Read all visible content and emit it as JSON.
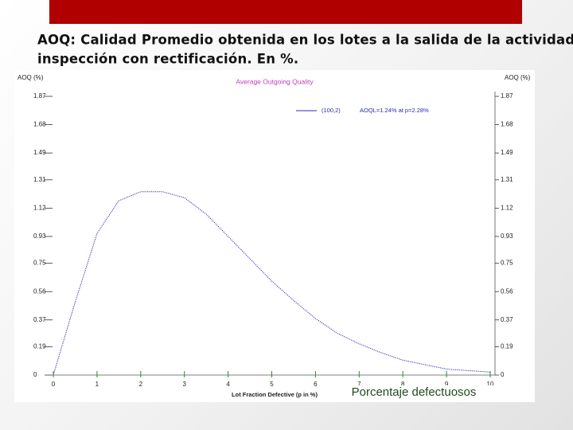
{
  "slide": {
    "title_lines": [
      "AOQ: Calidad Promedio obtenida en los lotes a la salida de la actividad de",
      "inspección con rectificación. En %."
    ]
  },
  "chart_data": {
    "type": "line",
    "title": "Average Outgoing Quality",
    "y_label": "AOQ (%)",
    "y2_label": "AOQ (%)",
    "x_label": "Lot Fraction Defective (p in %)",
    "annotations": [
      "AOQL=1.24% at p=2.28%",
      "Porcentaje defectuosos"
    ],
    "x": [
      0,
      0.5,
      1,
      1.5,
      2,
      2.5,
      3,
      3.5,
      4,
      4.5,
      5,
      5.5,
      6,
      6.5,
      7,
      7.5,
      8,
      8.5,
      9,
      9.5,
      10
    ],
    "series": [
      {
        "name": "(100,2)",
        "color": "#2b2bb8",
        "values": [
          0,
          0.49,
          0.95,
          1.17,
          1.23,
          1.23,
          1.19,
          1.08,
          0.93,
          0.78,
          0.63,
          0.5,
          0.38,
          0.28,
          0.21,
          0.15,
          0.1,
          0.07,
          0.04,
          0.03,
          0.02
        ]
      }
    ],
    "xlim": [
      0,
      10
    ],
    "xticks": [
      0,
      1,
      2,
      3,
      4,
      5,
      6,
      7,
      8,
      9,
      10
    ],
    "ylim": [
      0,
      1.87
    ],
    "yticks": [
      0,
      0.19,
      0.37,
      0.56,
      0.75,
      0.93,
      1.12,
      1.31,
      1.49,
      1.68,
      1.87
    ],
    "y2lim": [
      0,
      1.87
    ],
    "y2ticks": [
      0,
      0.19,
      0.37,
      0.56,
      0.75,
      0.93,
      1.12,
      1.31,
      1.49,
      1.68,
      1.87
    ]
  }
}
